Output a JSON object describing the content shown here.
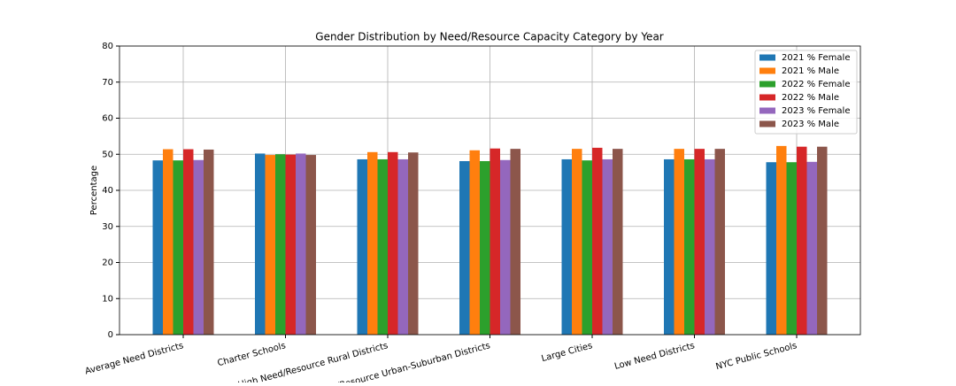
{
  "chart_data": {
    "type": "bar",
    "title": "Gender Distribution by Need/Resource Capacity Category by Year",
    "y_label": "Percentage",
    "categories": [
      "Average Need Districts",
      "Charter Schools",
      "High Need/Resource Rural Districts",
      "High Need/Resource Urban-Suburban Districts",
      "Large Cities",
      "Low Need Districts",
      "NYC Public Schools"
    ],
    "series": [
      {
        "name": "2021 % Female",
        "color": "#1f77b4",
        "values": [
          48.3,
          50.2,
          48.6,
          48.1,
          48.6,
          48.6,
          47.8
        ]
      },
      {
        "name": "2021 % Male",
        "color": "#ff7f0e",
        "values": [
          51.4,
          49.8,
          50.6,
          51.1,
          51.5,
          51.5,
          52.3
        ]
      },
      {
        "name": "2022 % Female",
        "color": "#2ca02c",
        "values": [
          48.3,
          50.0,
          48.6,
          48.1,
          48.3,
          48.6,
          47.8
        ]
      },
      {
        "name": "2022 % Male",
        "color": "#d62728",
        "values": [
          51.4,
          49.9,
          50.6,
          51.6,
          51.8,
          51.5,
          52.1
        ]
      },
      {
        "name": "2023 % Female",
        "color": "#9467bd",
        "values": [
          48.4,
          50.2,
          48.6,
          48.4,
          48.6,
          48.6,
          47.9
        ]
      },
      {
        "name": "2023 % Male",
        "color": "#8c564b",
        "values": [
          51.3,
          49.8,
          50.5,
          51.5,
          51.5,
          51.5,
          52.1
        ]
      }
    ],
    "ylim": [
      0,
      80
    ],
    "yticks": [
      0,
      10,
      20,
      30,
      40,
      50,
      60,
      70,
      80
    ],
    "grid": true,
    "legend": "upper right"
  }
}
